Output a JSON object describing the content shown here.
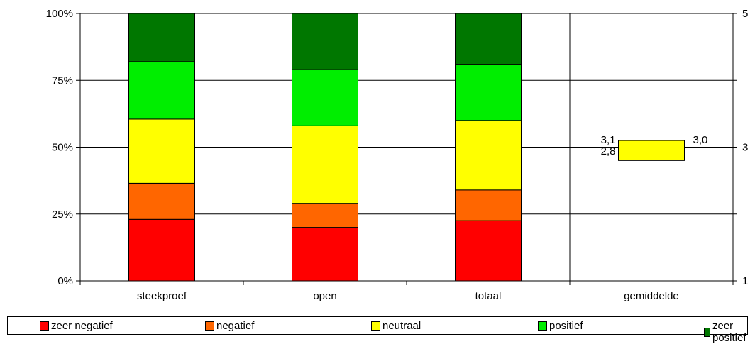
{
  "chart_data": {
    "type": "bar",
    "stacked": true,
    "categories": [
      "steekproef",
      "open",
      "totaal",
      "gemiddelde"
    ],
    "y_ticks": [
      "0%",
      "25%",
      "50%",
      "75%",
      "100%"
    ],
    "y2_ticks": [
      "1",
      "3",
      "5"
    ],
    "ylim": [
      0,
      100
    ],
    "y2lim": [
      1,
      5
    ],
    "grid": true,
    "legend_position": "bottom",
    "series": [
      {
        "name": "zeer negatief",
        "color": "#ff0000",
        "values": [
          23,
          20,
          22.5,
          null
        ]
      },
      {
        "name": "negatief",
        "color": "#ff6600",
        "values": [
          13.5,
          9,
          11.5,
          null
        ]
      },
      {
        "name": "neutraal",
        "color": "#ffff00",
        "values": [
          24,
          29,
          26,
          null
        ]
      },
      {
        "name": "positief",
        "color": "#00ee00",
        "values": [
          21.5,
          21,
          21,
          null
        ]
      },
      {
        "name": "zeer positief",
        "color": "#007700",
        "values": [
          18,
          21,
          19,
          null
        ]
      }
    ],
    "gemiddelde": {
      "secondary_axis_range": [
        2.8,
        3.1
      ],
      "labels": {
        "top_left": "3,1",
        "bottom_left": "2,8",
        "top_right": "3,0"
      },
      "color": "#ffff00"
    }
  }
}
